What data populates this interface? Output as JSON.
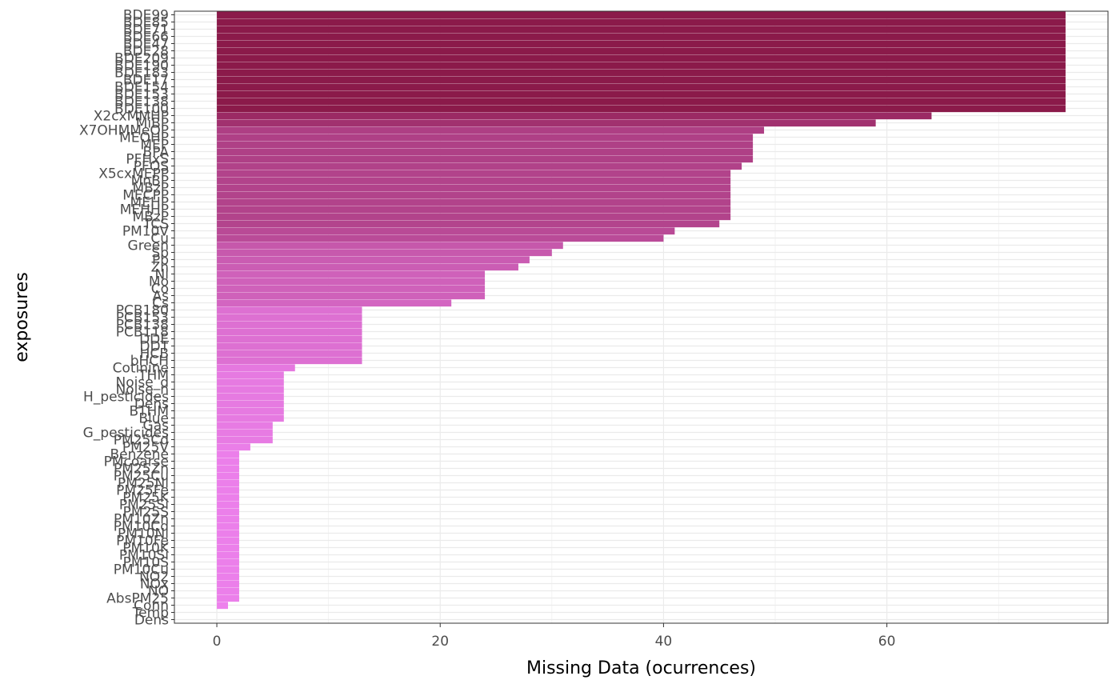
{
  "chart_data": {
    "type": "bar",
    "orientation": "horizontal",
    "xlabel": "Missing Data (ocurrences)",
    "ylabel": "exposures",
    "xlim": [
      -3.8,
      79.8
    ],
    "x_ticks": [
      0,
      20,
      40,
      60
    ],
    "grid": true,
    "legend": "none",
    "color_low": "#ee82ee",
    "color_high": "#8b1a4a",
    "bar_color_scale": "continuous by value",
    "categories": [
      "BDE99",
      "BDE85",
      "BDE71",
      "BDE66",
      "BDE47",
      "BDE28",
      "BDE209",
      "BDE190",
      "BDE183",
      "BDE17",
      "BDE154",
      "BDE153",
      "BDE138",
      "BDE100",
      "X2cxMMHP",
      "MiBP",
      "X7OHMMeOP",
      "MEOHP",
      "MEP",
      "BPA",
      "PFHxS",
      "PFOS",
      "X5cxMEPP",
      "MnBP",
      "MBzP",
      "MECPP",
      "MEHP",
      "MEHHP",
      "MBzP2",
      "TCS",
      "PM10V",
      "Cu",
      "Green",
      "Sb",
      "Pb",
      "Zn",
      "Ni",
      "Mo",
      "Co",
      "As",
      "Cs",
      "PCB180",
      "PCB153",
      "PCB138",
      "PCB118",
      "DDE",
      "DDT",
      "HCB",
      "bHCH",
      "Cotinine",
      "THM",
      "Noise_d",
      "Noise_n",
      "H_pesticides",
      "Dens2",
      "BTHM",
      "Blue",
      "Gas",
      "G_pesticides",
      "PM25Cd",
      "PM25V",
      "Benzene",
      "PMcoarse",
      "PM25Zn",
      "PM25Cu",
      "PM25Ni",
      "PM25Fe",
      "PM25K",
      "PM25Si",
      "PM25S",
      "PM10Zn",
      "PM10Cd",
      "PM10Ni",
      "PM10Fe",
      "PM10K",
      "PM10Si",
      "PM10S",
      "PM10Cu",
      "NO2",
      "NOx",
      "NO",
      "AbsPM25",
      "Conn",
      "Temp",
      "Dens"
    ],
    "tick_labels": [
      "BDE99",
      "BDE85",
      "BDE71",
      "BDE66",
      "BDE47",
      "BDE28",
      "BDE209",
      "BDE190",
      "BDE183",
      "BDE17",
      "BDE154",
      "BDE153",
      "BDE138",
      "BDE100",
      "X2cxMMHP",
      "MiBP",
      "X7OHMMeOP",
      "MEOHP",
      "MEP",
      "BPA",
      "PFHxS",
      "PFOS",
      "X5cxMEPP",
      "MnBP",
      "MBzP",
      "MECPP",
      "MEHP",
      "MEHHP",
      "MBzP",
      "TCS",
      "PM10V",
      "Cu",
      "Green",
      "Sb",
      "Pb",
      "Zn",
      "Ni",
      "Mo",
      "Co",
      "As",
      "Cs",
      "PCB180",
      "PCB153",
      "PCB138",
      "PCB118",
      "DDE",
      "DDT",
      "HCB",
      "bHCH",
      "Cotinine",
      "THM",
      "Noise_d",
      "Noise_n",
      "H_pesticides",
      "Dens",
      "BTHM",
      "Blue",
      "Gas",
      "G_pesticides",
      "PM25Cd",
      "PM25V",
      "Benzene",
      "PMcoarse",
      "PM25Zn",
      "PM25Cu",
      "PM25Ni",
      "PM25Fe",
      "PM25K",
      "PM25Si",
      "PM25S",
      "PM10Zn",
      "PM10Cd",
      "PM10Ni",
      "PM10Fe",
      "PM10K",
      "PM10Si",
      "PM10S",
      "PM10Cu",
      "NO2",
      "NOx",
      "NO",
      "AbsPM25",
      "Conn",
      "Temp",
      "Dens"
    ],
    "values": [
      76,
      76,
      76,
      76,
      76,
      76,
      76,
      76,
      76,
      76,
      76,
      76,
      76,
      76,
      64,
      59,
      49,
      48,
      48,
      48,
      48,
      47,
      46,
      46,
      46,
      46,
      46,
      46,
      46,
      45,
      41,
      40,
      31,
      30,
      28,
      27,
      24,
      24,
      24,
      24,
      21,
      13,
      13,
      13,
      13,
      13,
      13,
      13,
      13,
      7,
      6,
      6,
      6,
      6,
      6,
      6,
      6,
      5,
      5,
      5,
      3,
      2,
      2,
      2,
      2,
      2,
      2,
      2,
      2,
      2,
      2,
      2,
      2,
      2,
      2,
      2,
      2,
      2,
      2,
      2,
      2,
      2,
      1,
      0,
      0
    ]
  }
}
